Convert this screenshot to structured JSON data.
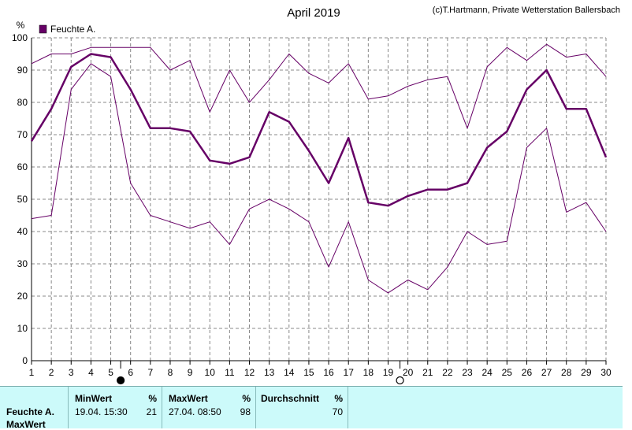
{
  "chart_data": {
    "type": "line",
    "title": "April 2019",
    "copyright": "(c)T.Hartmann, Private Wetterstation Ballersbach",
    "ylabel": "%",
    "ylim": [
      0,
      100
    ],
    "yticks": [
      0,
      10,
      20,
      30,
      40,
      50,
      60,
      70,
      80,
      90,
      100
    ],
    "x": [
      1,
      2,
      3,
      4,
      5,
      6,
      7,
      8,
      9,
      10,
      11,
      12,
      13,
      14,
      15,
      16,
      17,
      18,
      19,
      20,
      21,
      22,
      23,
      24,
      25,
      26,
      27,
      28,
      29,
      30
    ],
    "legend": [
      "Feuchte A."
    ],
    "grid": true,
    "series": [
      {
        "name": "Feuchte A.",
        "role": "avg",
        "values": [
          68,
          78,
          91,
          95,
          94,
          84,
          72,
          72,
          71,
          62,
          61,
          63,
          77,
          74,
          65,
          55,
          69,
          49,
          48,
          51,
          53,
          53,
          55,
          66,
          71,
          84,
          90,
          78,
          78,
          63
        ]
      },
      {
        "role": "max",
        "values": [
          92,
          95,
          95,
          97,
          97,
          97,
          97,
          90,
          93,
          77,
          90,
          80,
          87,
          95,
          89,
          86,
          92,
          81,
          82,
          85,
          87,
          88,
          72,
          91,
          97,
          93,
          98,
          94,
          95,
          88
        ]
      },
      {
        "role": "min",
        "values": [
          44,
          45,
          84,
          92,
          88,
          55,
          45,
          43,
          41,
          43,
          36,
          47,
          50,
          47,
          43,
          29,
          43,
          25,
          21,
          25,
          22,
          29,
          40,
          36,
          37,
          66,
          72,
          46,
          49,
          40
        ]
      }
    ],
    "moon_symbols": [
      {
        "day": 5.5,
        "phase": "new"
      },
      {
        "day": 19.6,
        "phase": "full"
      }
    ]
  },
  "footer": {
    "min_label": "MinWert",
    "min_unit": "%",
    "min_date": "19.04.  15:30",
    "min_value": "21",
    "max_label": "MaxWert",
    "max_unit": "%",
    "max_date": "27.04.  08:50",
    "max_value": "98",
    "avg_label": "Durchschnitt",
    "avg_unit": "%",
    "avg_value": "70",
    "row_name": "Feuchte A.",
    "row_name2": "MaxWert"
  },
  "colors": {
    "line": "#660066",
    "grid": "#888888",
    "footer_bg": "#ccfafa"
  }
}
